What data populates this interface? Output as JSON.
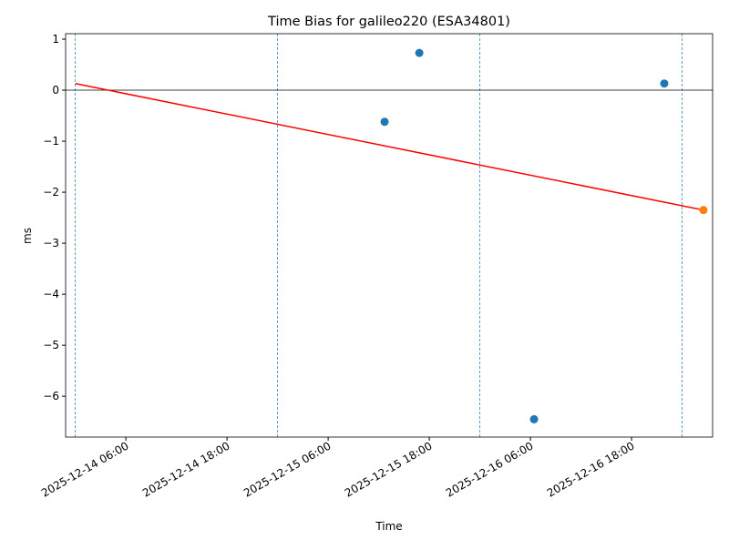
{
  "chart_data": {
    "type": "scatter",
    "title": "Time Bias for galileo220 (ESA34801)",
    "x_label": "Time",
    "y_label": "ms",
    "xlim": [
      "2025-12-13 22:51",
      "2025-12-17 03:37"
    ],
    "ylim": [
      -6.8,
      1.107
    ],
    "xticks": [
      "2025-12-14 06:00",
      "2025-12-14 18:00",
      "2025-12-15 06:00",
      "2025-12-15 18:00",
      "2025-12-16 06:00",
      "2025-12-16 18:00"
    ],
    "yticks": [
      {
        "value": -6,
        "label": "−6"
      },
      {
        "value": -5,
        "label": "−5"
      },
      {
        "value": -4,
        "label": "−4"
      },
      {
        "value": -3,
        "label": "−3"
      },
      {
        "value": -2,
        "label": "−2"
      },
      {
        "value": -1,
        "label": "−1"
      },
      0,
      1
    ],
    "hlines": [
      0
    ],
    "vlines": [
      "2025-12-14 00:00",
      "2025-12-15 00:00",
      "2025-12-16 00:00",
      "2025-12-17 00:00"
    ],
    "series": [
      {
        "type": "scatter",
        "color": "#1f77b4",
        "x": [
          "2025-12-15 12:42",
          "2025-12-15 16:49",
          "2025-12-16 06:26",
          "2025-12-16 21:53"
        ],
        "values": [
          -0.62,
          0.73,
          -6.45,
          0.13
        ]
      },
      {
        "type": "scatter",
        "color": "#ff7f0e",
        "x": [
          "2025-12-17 02:32"
        ],
        "values": [
          -2.35
        ]
      },
      {
        "type": "line",
        "color": "#ff0000",
        "x": [
          "2025-12-14 00:00",
          "2025-12-17 02:32"
        ],
        "values": [
          0.13,
          -2.35
        ]
      }
    ]
  }
}
